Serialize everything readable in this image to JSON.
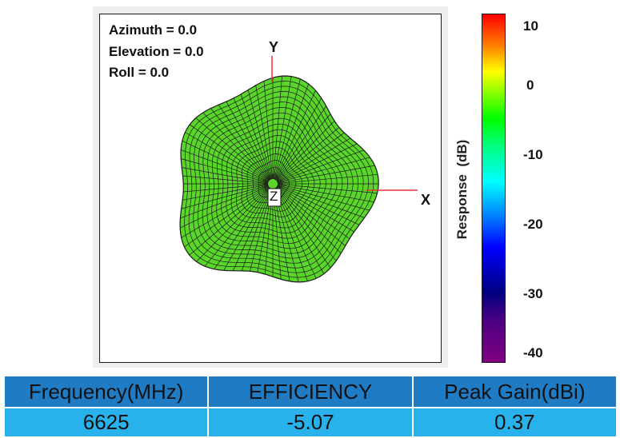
{
  "orientation": {
    "azimuth": "Azimuth = 0.0",
    "elevation": "Elevation = 0.0",
    "roll": "Roll = 0.0"
  },
  "axes": {
    "x": "X",
    "y": "Y",
    "z": "Z"
  },
  "colorbar": {
    "label": "Response  (dB)",
    "ticks": [
      "10",
      "0",
      "-10",
      "-20",
      "-30",
      "-40"
    ]
  },
  "pattern": {
    "mesh_color": "#1a1a1a",
    "fill_color": "#5ad62a",
    "axis_color": "#e8303c"
  },
  "table": {
    "headers": [
      "Frequency(MHz)",
      "EFFICIENCY",
      "Peak Gain(dBi)"
    ],
    "values": [
      "6625",
      "-5.07",
      "0.37"
    ]
  }
}
